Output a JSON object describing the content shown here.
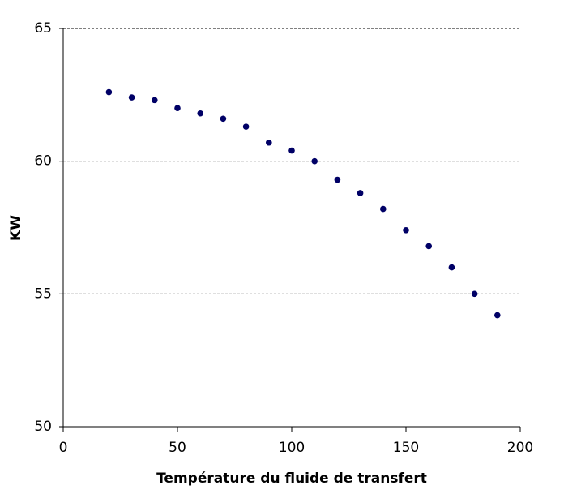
{
  "chart_data": {
    "type": "scatter",
    "x_label": "Température du fluide de transfert",
    "y_label": "KW",
    "x": [
      20,
      30,
      40,
      50,
      60,
      70,
      80,
      90,
      100,
      110,
      120,
      130,
      140,
      150,
      160,
      170,
      180,
      190
    ],
    "values": [
      62.6,
      62.4,
      62.3,
      62.0,
      61.8,
      61.6,
      61.3,
      60.7,
      60.4,
      60.0,
      59.3,
      58.8,
      58.2,
      57.4,
      56.8,
      56.0,
      55.0,
      54.2
    ],
    "color": "#000066",
    "xlim": [
      0,
      200
    ],
    "xticks": [
      0,
      50,
      100,
      150,
      200
    ],
    "ylim": [
      50,
      65
    ],
    "yticks": [
      50,
      55,
      60,
      65
    ],
    "grid": true
  }
}
